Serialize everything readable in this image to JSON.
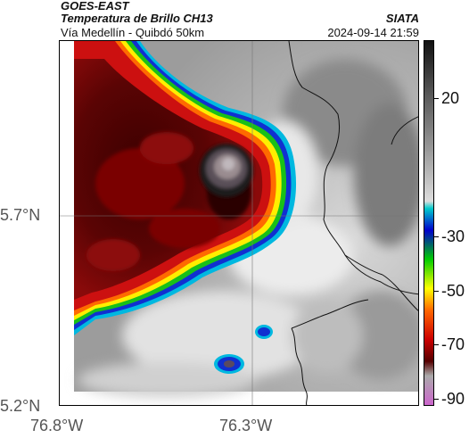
{
  "header": {
    "satellite": "GOES-EAST",
    "product": "Temperatura de Brillo CH13",
    "region": "Vía Medellín - Quibdó 50km",
    "organization": "SIATA",
    "datetime": "2024-09-14 21:59"
  },
  "axes": {
    "y_labels": [
      "5.7°N",
      "5.2°N"
    ],
    "x_labels": [
      "76.8°W",
      "76.3°W"
    ]
  },
  "colorbar": {
    "labels": [
      "20",
      "-30",
      "-50",
      "-70",
      "-90"
    ],
    "colors": [
      "#111111",
      "#555555",
      "#999999",
      "#dddddd",
      "#00cccc",
      "#0000cc",
      "#00cc00",
      "#ffff00",
      "#ff6600",
      "#cc0000",
      "#550000",
      "#aaaaaa",
      "#cc66cc"
    ]
  },
  "map": {
    "colors": {
      "background_gray": "#c6c6c6",
      "light_region": "#ececec",
      "dark_gray": "#8e8e8e",
      "storm_core_dark": "#4a0000",
      "storm_red": "#cc1010",
      "storm_orange": "#ff6a00",
      "storm_yellow": "#ffee00",
      "storm_green": "#18c018",
      "storm_blue": "#1030d0",
      "storm_cyan": "#00b8e0",
      "overshoot_gray": "#9a8c90"
    }
  }
}
